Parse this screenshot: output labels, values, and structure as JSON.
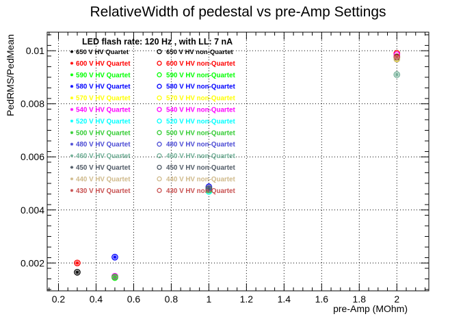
{
  "chart_data": {
    "type": "scatter",
    "title": "RelativeWidth of pedestal vs pre-Amp Settings",
    "xlabel": "pre-Amp (MOhm)",
    "ylabel": "PedRMS/PedMean",
    "xlim": [
      0.14,
      2.17
    ],
    "ylim": [
      0.00095,
      0.0107
    ],
    "x_ticks": [
      0.2,
      0.4,
      0.6,
      0.8,
      1,
      1.2,
      1.4,
      1.6,
      1.8,
      2
    ],
    "x_tick_labels": [
      "0.2",
      "0.4",
      "0.6",
      "0.8",
      "1",
      "1.2",
      "1.4",
      "1.6",
      "1.8",
      "2"
    ],
    "y_ticks": [
      0.002,
      0.004,
      0.006,
      0.008,
      0.01
    ],
    "y_tick_labels": [
      "0.002",
      "0.004",
      "0.006",
      "0.008",
      "0.01"
    ],
    "grid": true,
    "legend_header": "LED flash rate: 120 Hz , with LL: 7 nA",
    "legend_placement": "top-left",
    "series": [
      {
        "name": "650 V HV Quartet",
        "color": "#000000",
        "marker": "star",
        "points": [
          [
            0.3,
            0.00165
          ],
          [
            2.0,
            0.00975
          ]
        ]
      },
      {
        "name": "650 V HV non-Quartet",
        "color": "#000000",
        "marker": "circle",
        "points": [
          [
            0.3,
            0.00165
          ],
          [
            2.0,
            0.00975
          ]
        ]
      },
      {
        "name": "600 V HV Quartet",
        "color": "#ff0000",
        "marker": "star",
        "points": [
          [
            0.3,
            0.002
          ]
        ]
      },
      {
        "name": "600 V HV non-Quartet",
        "color": "#ff0000",
        "marker": "circle",
        "points": [
          [
            0.3,
            0.002
          ],
          [
            2.0,
            0.0099
          ]
        ]
      },
      {
        "name": "590 V HV Quartet",
        "color": "#00ff00",
        "marker": "star",
        "points": [
          [
            0.5,
            0.00145
          ]
        ]
      },
      {
        "name": "590 V HV non-Quartet",
        "color": "#00ff00",
        "marker": "circle",
        "points": [
          [
            0.5,
            0.00145
          ],
          [
            1.0,
            0.0047
          ]
        ]
      },
      {
        "name": "580 V HV Quartet",
        "color": "#0000ff",
        "marker": "star",
        "points": [
          [
            0.5,
            0.00222
          ]
        ]
      },
      {
        "name": "580 V HV non-Quartet",
        "color": "#0000ff",
        "marker": "circle",
        "points": [
          [
            0.5,
            0.00222
          ],
          [
            1.0,
            0.00487
          ]
        ]
      },
      {
        "name": "570 V HV Quartet",
        "color": "#ffff00",
        "marker": "star",
        "points": [
          [
            0.5,
            0.00148
          ]
        ]
      },
      {
        "name": "570 V HV non-Quartet",
        "color": "#ffff00",
        "marker": "circle",
        "points": [
          [
            0.5,
            0.00148
          ],
          [
            2.0,
            0.0097
          ]
        ]
      },
      {
        "name": "540 V HV Quartet",
        "color": "#ff00ff",
        "marker": "star",
        "points": [
          [
            0.5,
            0.0015
          ]
        ]
      },
      {
        "name": "540 V HV non-Quartet",
        "color": "#ff00ff",
        "marker": "circle",
        "points": [
          [
            0.5,
            0.0015
          ],
          [
            2.0,
            0.00985
          ]
        ]
      },
      {
        "name": "520 V HV Quartet",
        "color": "#00ffff",
        "marker": "star",
        "points": [
          [
            1.0,
            0.0047
          ]
        ]
      },
      {
        "name": "520 V HV non-Quartet",
        "color": "#00ffff",
        "marker": "circle",
        "points": [
          [
            1.0,
            0.0047
          ]
        ]
      },
      {
        "name": "500 V HV Quartet",
        "color": "#33cc33",
        "marker": "star",
        "points": [
          [
            0.5,
            0.00147
          ]
        ]
      },
      {
        "name": "500 V HV non-Quartet",
        "color": "#33cc33",
        "marker": "circle",
        "points": [
          [
            0.5,
            0.00147
          ],
          [
            1.0,
            0.00475
          ]
        ]
      },
      {
        "name": "480 V HV Quartet",
        "color": "#4a4ad4",
        "marker": "star",
        "points": [
          [
            1.0,
            0.00485
          ]
        ]
      },
      {
        "name": "480 V HV non-Quartet",
        "color": "#4a4ad4",
        "marker": "circle",
        "points": [
          [
            1.0,
            0.00485
          ]
        ]
      },
      {
        "name": "460 V HV Quartet",
        "color": "#6fae95",
        "marker": "star",
        "points": [
          [
            2.0,
            0.0091
          ]
        ]
      },
      {
        "name": "460 V HV non-Quartet",
        "color": "#6fae95",
        "marker": "circle",
        "points": [
          [
            2.0,
            0.0091
          ]
        ]
      },
      {
        "name": "450 V HV Quartet",
        "color": "#505a66",
        "marker": "star",
        "points": [
          [
            1.0,
            0.0048
          ]
        ]
      },
      {
        "name": "450 V HV non-Quartet",
        "color": "#505a66",
        "marker": "circle",
        "points": [
          [
            1.0,
            0.0048
          ]
        ]
      },
      {
        "name": "440 V HV Quartet",
        "color": "#cfb98a",
        "marker": "star",
        "points": [
          [
            2.0,
            0.00968
          ]
        ]
      },
      {
        "name": "440 V HV non-Quartet",
        "color": "#cfb98a",
        "marker": "circle",
        "points": [
          [
            2.0,
            0.00968
          ]
        ]
      },
      {
        "name": "430 V HV Quartet",
        "color": "#c85050",
        "marker": "star",
        "points": [
          [
            2.0,
            0.00978
          ]
        ]
      },
      {
        "name": "430 V HV non-Quartet",
        "color": "#c85050",
        "marker": "circle",
        "points": [
          [
            2.0,
            0.00978
          ]
        ]
      }
    ]
  }
}
